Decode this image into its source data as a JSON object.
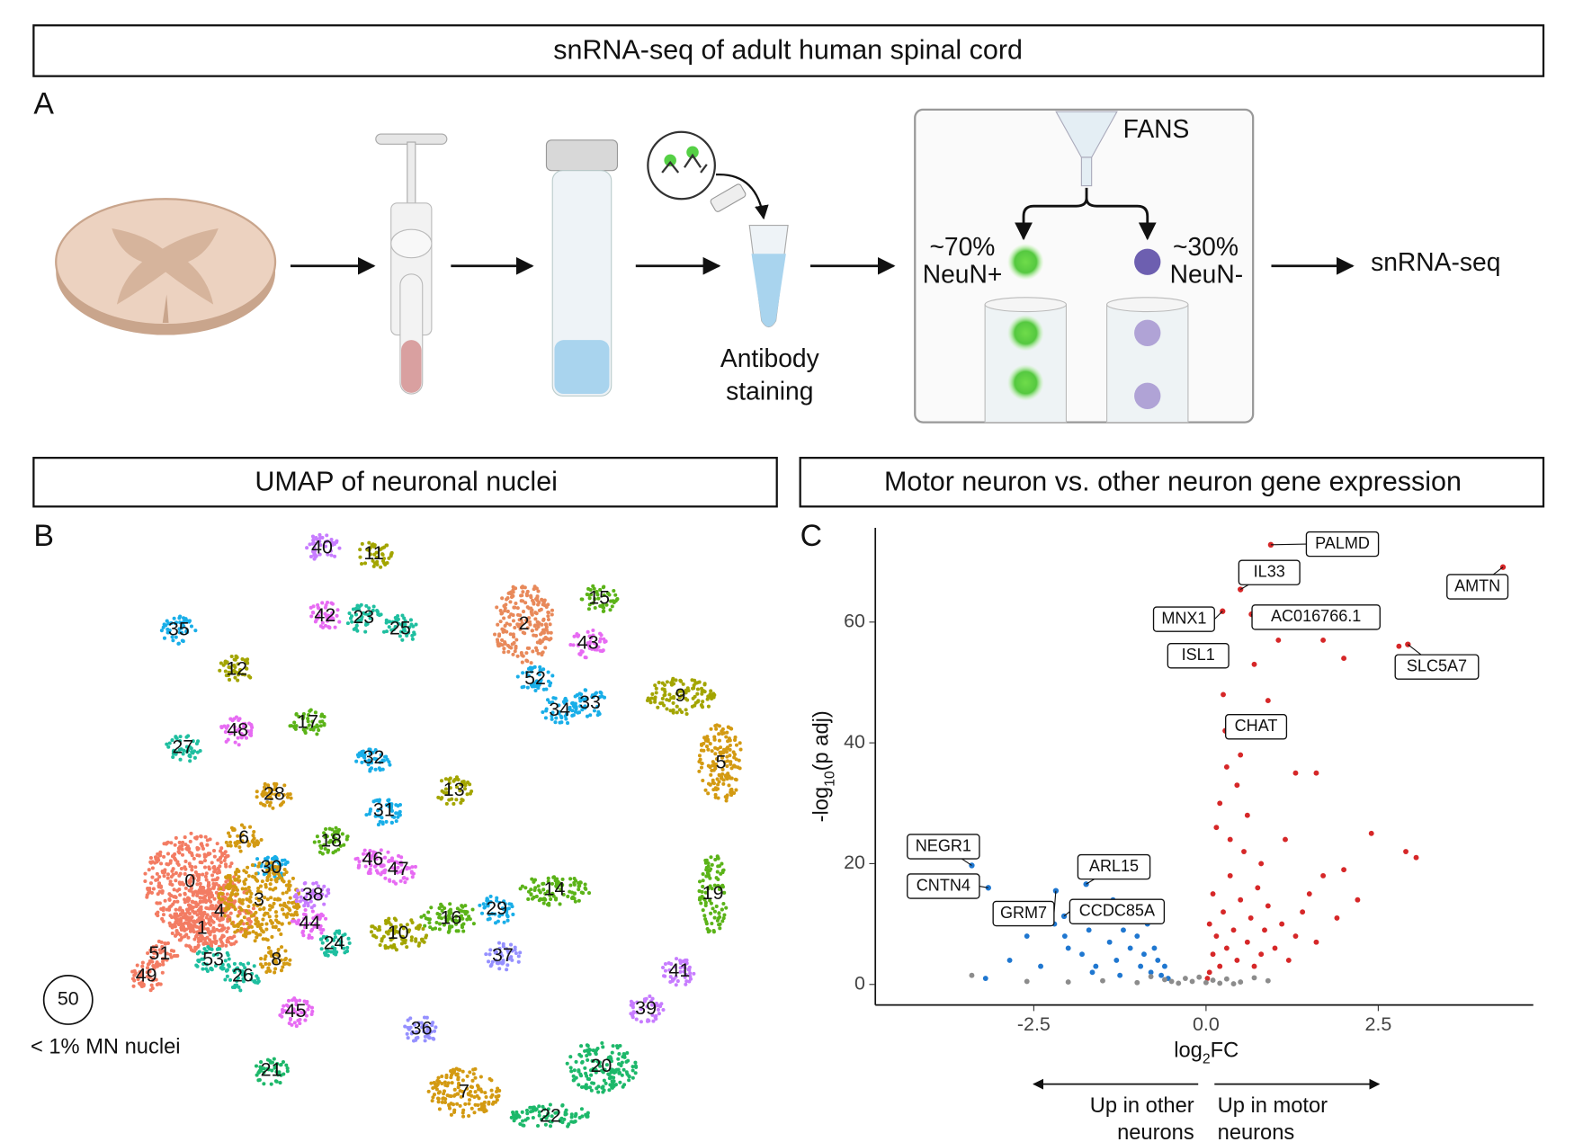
{
  "headers": {
    "top": "snRNA-seq of adult human spinal cord",
    "umap": "UMAP of neuronal nuclei",
    "volcano": "Motor neuron vs. other neuron gene expression"
  },
  "panels": {
    "a": "A",
    "b": "B",
    "c": "C"
  },
  "workflow": {
    "staining_1": "Antibody",
    "staining_2": "staining",
    "fans": "FANS",
    "pos_pct": "~70%",
    "pos_name": "NeuN+",
    "neg_pct": "~30%",
    "neg_name": "NeuN-",
    "output": "snRNA-seq"
  },
  "umap": {
    "clusters": [
      "40",
      "11",
      "42",
      "23",
      "25",
      "35",
      "12",
      "17",
      "48",
      "27",
      "2",
      "15",
      "43",
      "52",
      "34",
      "33",
      "9",
      "5",
      "32",
      "31",
      "13",
      "28",
      "6",
      "18",
      "30",
      "46",
      "47",
      "0",
      "4",
      "3",
      "38",
      "1",
      "44",
      "14",
      "19",
      "29",
      "16",
      "10",
      "24",
      "37",
      "53",
      "8",
      "26",
      "51",
      "49",
      "41",
      "39",
      "45",
      "36",
      "20",
      "21",
      "7",
      "22"
    ],
    "outlier": "50",
    "outlier_note": "< 1% MN nuclei"
  },
  "chart_data": {
    "type": "scatter",
    "x_label": {
      "prefix": "log",
      "sub": "2",
      "suffix": "FC"
    },
    "y_label": {
      "prefix": "-log",
      "sub": "10",
      "suffix": "(p adj)"
    },
    "xlim": [
      -4.8,
      4.75
    ],
    "ylim": [
      -3.4,
      75.6
    ],
    "xticks": [
      -2.5,
      {
        "value": 0,
        "label": "0.0"
      },
      2.5
    ],
    "yticks": [
      0,
      20,
      40,
      60
    ],
    "series": [
      {
        "color": "#d62728",
        "x": [
          0.05,
          0.1,
          0.15,
          0.2,
          0.25,
          0.3,
          0.35,
          0.4,
          0.45,
          0.5,
          0.55,
          0.6,
          0.65,
          0.7,
          0.75,
          0.8,
          0.85,
          0.9,
          1.0,
          1.1,
          1.2,
          1.3,
          1.4,
          1.5,
          1.6,
          1.7,
          1.9,
          2.0,
          2.2,
          2.4,
          2.9,
          3.05,
          0.2,
          0.3,
          0.4,
          0.25,
          0.5,
          0.6,
          0.7,
          0.9,
          1.3,
          1.6,
          0.15,
          0.45,
          1.05,
          1.7,
          2.0,
          2.8,
          0.35,
          0.8,
          1.15,
          0.05,
          0.1,
          0.02
        ],
        "y": [
          2,
          5,
          8,
          3,
          12,
          6,
          18,
          9,
          4,
          14,
          22,
          7,
          11,
          3,
          16,
          5,
          9,
          13,
          6,
          10,
          4,
          8,
          12,
          15,
          7,
          18,
          11,
          19,
          14,
          25,
          22,
          21,
          30,
          36,
          44,
          48,
          38,
          28,
          53,
          47,
          35,
          35,
          26,
          33,
          57,
          57,
          54,
          56,
          24,
          20,
          24,
          10,
          15,
          1
        ]
      },
      {
        "color": "#1f77d0",
        "x": [
          -3.2,
          -2.85,
          -2.6,
          -2.4,
          -2.2,
          -2.0,
          -1.9,
          -1.8,
          -1.7,
          -1.6,
          -1.5,
          -1.4,
          -1.3,
          -1.2,
          -1.1,
          -1.0,
          -0.95,
          -0.9,
          -0.85,
          -0.8,
          -0.75,
          -0.7,
          -0.65,
          -0.6,
          -1.05,
          -1.35,
          -2.05,
          -1.65,
          -0.55,
          -1.25
        ],
        "y": [
          1,
          4,
          8,
          3,
          10,
          6,
          13,
          5,
          9,
          3,
          11,
          7,
          4,
          9,
          6,
          8,
          3,
          5,
          10,
          2,
          6,
          4,
          1.5,
          3,
          12,
          14,
          8,
          2,
          1,
          1.5
        ]
      },
      {
        "color": "#8c8c8c",
        "x": [
          -3.4,
          -2.6,
          -2.0,
          -1.5,
          -1.0,
          -0.6,
          -0.4,
          -0.3,
          -0.2,
          -0.1,
          0,
          0.1,
          0.2,
          0.3,
          0.5,
          0.7,
          0.9,
          -0.8,
          0.4,
          -0.5
        ],
        "y": [
          1.5,
          0.5,
          0.4,
          0.6,
          0.3,
          0.8,
          0.2,
          1,
          0.5,
          1.2,
          0.3,
          0.7,
          0.2,
          0.9,
          0.4,
          1.1,
          0.6,
          1.3,
          0.1,
          0.5
        ]
      }
    ],
    "labeled": [
      {
        "name": "PALMD",
        "x": 0.94,
        "y": 72.8,
        "color": "#d62728"
      },
      {
        "name": "IL33",
        "x": 0.5,
        "y": 65.4,
        "color": "#d62728"
      },
      {
        "name": "AMTN",
        "x": 4.31,
        "y": 69.1,
        "color": "#d62728"
      },
      {
        "name": "AC016766.1",
        "x": 0.66,
        "y": 61.3,
        "color": "#d62728"
      },
      {
        "name": "MNX1",
        "x": 0.24,
        "y": 61.8,
        "color": "#d62728"
      },
      {
        "name": "ISL1",
        "x": 0.28,
        "y": 54.1,
        "color": "#d62728"
      },
      {
        "name": "SLC5A7",
        "x": 2.93,
        "y": 56.3,
        "color": "#d62728"
      },
      {
        "name": "CHAT",
        "x": 0.28,
        "y": 42,
        "color": "#d62728"
      },
      {
        "name": "NEGR1",
        "x": -3.4,
        "y": 19.7,
        "color": "#1f77d0"
      },
      {
        "name": "CNTN4",
        "x": -3.16,
        "y": 16,
        "color": "#1f77d0"
      },
      {
        "name": "ARL15",
        "x": -1.74,
        "y": 16.6,
        "color": "#1f77d0"
      },
      {
        "name": "GRM7",
        "x": -2.18,
        "y": 15.5,
        "color": "#1f77d0"
      },
      {
        "name": "CCDC85A",
        "x": -2.06,
        "y": 11.3,
        "color": "#1f77d0"
      }
    ],
    "direction": {
      "left_1": "Up in other",
      "left_2": "neurons",
      "right_1": "Up in motor",
      "right_2": "neurons"
    }
  }
}
